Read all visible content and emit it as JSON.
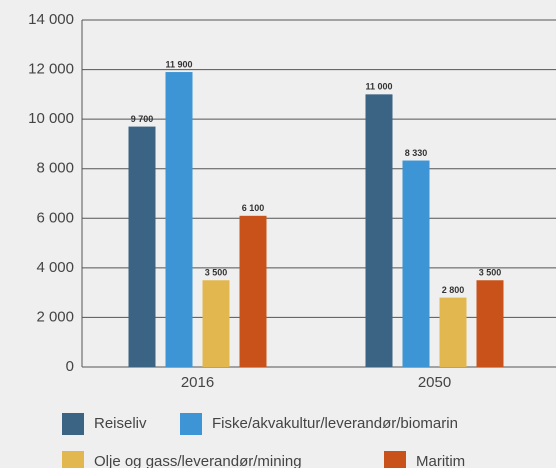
{
  "chart_data": {
    "type": "bar",
    "categories": [
      "2016",
      "2050"
    ],
    "series": [
      {
        "name": "Reiseliv",
        "color": "#3b6383",
        "values": [
          9700,
          11000
        ],
        "value_labels": [
          "9 700",
          "11 000"
        ]
      },
      {
        "name": "Fiske/akvakultur/leverandør/biomarin",
        "color": "#3d95d6",
        "values": [
          11900,
          8330
        ],
        "value_labels": [
          "11 900",
          "8 330"
        ]
      },
      {
        "name": "Olje og gass/leverandør/mining",
        "color": "#e3b74f",
        "values": [
          3500,
          2800
        ],
        "value_labels": [
          "3 500",
          "2 800"
        ]
      },
      {
        "name": "Maritim",
        "color": "#c8521a",
        "values": [
          6100,
          3500
        ],
        "value_labels": [
          "6 100",
          "3 500"
        ]
      }
    ],
    "ylim": [
      0,
      14000
    ],
    "yticks": [
      {
        "value": 0,
        "label": "0"
      },
      {
        "value": 2000,
        "label": "2 000"
      },
      {
        "value": 4000,
        "label": "4 000"
      },
      {
        "value": 6000,
        "label": "6 000"
      },
      {
        "value": 8000,
        "label": "8 000"
      },
      {
        "value": 10000,
        "label": "10 000"
      },
      {
        "value": 12000,
        "label": "12 000"
      },
      {
        "value": 14000,
        "label": "14 000"
      }
    ],
    "grid": true
  }
}
